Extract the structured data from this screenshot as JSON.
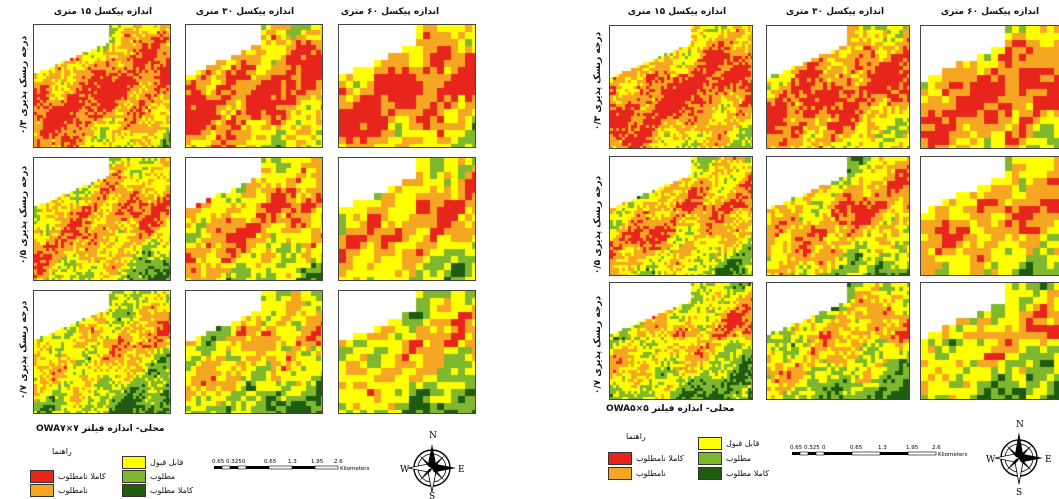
{
  "left": {
    "columns": [
      "اندازه پیکسل ۱۵ متری",
      "اندازه پیکسل ۳۰ متری",
      "اندازه پیکسل ۶۰ متری"
    ],
    "rows": [
      "درجه ریسک پذیری ۰/۳",
      "درجه ریسک پذیری ۰/۵",
      "درجه ریسک پذیری ۰/۷"
    ],
    "figure_title": "OWAمحلی- اندازه فیلتر ۷×۷",
    "legend_title": "راهنما",
    "legend": [
      {
        "label": "قابل قبول",
        "color": "#ffff00"
      },
      {
        "label": "کاملا نامطلوب",
        "color": "#e8251c"
      },
      {
        "label": "مطلوب",
        "color": "#7fb82e"
      },
      {
        "label": "نامطلوب",
        "color": "#f5a623"
      },
      {
        "label": "کاملا مطلوب",
        "color": "#1f5c0f"
      }
    ],
    "scale_ticks": [
      "0.65 0.325",
      "0",
      "0.65",
      "1.3",
      "1.95",
      "2.6"
    ],
    "scale_unit": "Kilometers"
  },
  "right": {
    "columns": [
      "اندازه پیکسل ۱۵ متری",
      "اندازه پیکسل ۳۰ متری",
      "اندازه پیکسل ۶۰ متری"
    ],
    "rows": [
      "درجه ریسک پذیری ۰/۳",
      "درجه ریسک پذیری ۰/۵",
      "درجه ریسک پذیری ۰/۷"
    ],
    "figure_title": "OWAمحلی- اندازه فیلتر ۵×۵",
    "legend_title": "راهنما",
    "legend": [
      {
        "label": "قابل قبول",
        "color": "#ffff00"
      },
      {
        "label": "کاملا نامطلوب",
        "color": "#e8251c"
      },
      {
        "label": "مطلوب",
        "color": "#7fb82e"
      },
      {
        "label": "نامطلوب",
        "color": "#f5a623"
      },
      {
        "label": "کاملا مطلوب",
        "color": "#1f5c0f"
      }
    ],
    "scale_ticks": [
      "0.65 0.325",
      "0",
      "0.65",
      "1.3",
      "1.95",
      "2.6"
    ],
    "scale_unit": "Kilometers"
  },
  "compass": {
    "n": "N",
    "s": "S",
    "e": "E",
    "w": "W"
  }
}
